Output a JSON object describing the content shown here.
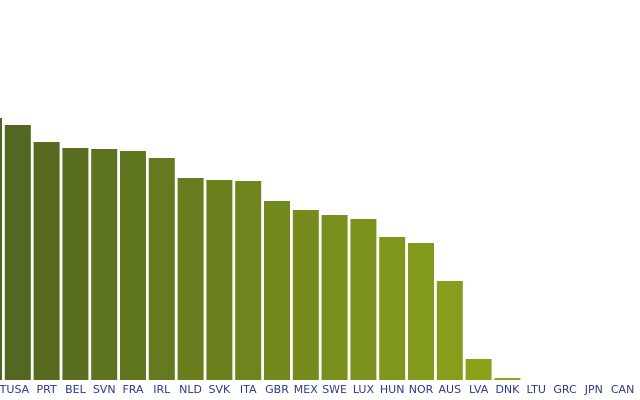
{
  "chart_data": {
    "type": "bar",
    "categories": [
      "T",
      "USA",
      "PRT",
      "BEL",
      "SVN",
      "FRA",
      "IRL",
      "NLD",
      "SVK",
      "ITA",
      "GBR",
      "MEX",
      "SWE",
      "LUX",
      "HUN",
      "NOR",
      "AUS",
      "LVA",
      "DNK",
      "LTU",
      "GRC",
      "JPN",
      "CAN"
    ],
    "values": [
      262,
      255,
      238,
      232,
      231,
      229,
      222,
      202,
      200,
      199,
      179,
      170,
      165,
      161,
      143,
      137,
      99,
      21,
      2,
      0,
      0,
      0,
      0
    ],
    "color_start": "#4f6420",
    "color_end": "#9ab41a"
  }
}
